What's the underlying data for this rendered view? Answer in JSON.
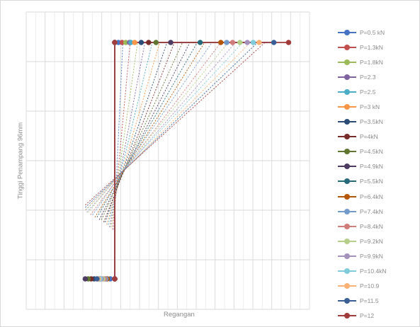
{
  "chart_data": {
    "type": "line",
    "title": "",
    "xlabel": "Regangan",
    "ylabel": "Tinggi Penampang 96mm",
    "xlim": [
      -2,
      10
    ],
    "ylim": [
      0,
      96
    ],
    "grid": true,
    "legend_position": "right",
    "series": [
      {
        "name": "P=0.5 kN",
        "color": "#4472c4",
        "x": [
          0.25,
          0.0,
          0.0,
          -0.3
        ],
        "y": [
          96,
          96,
          0,
          0
        ],
        "trend": [
          [
            -0.05,
            20
          ],
          [
            0.55,
            96
          ]
        ]
      },
      {
        "name": "P=1.3kN",
        "color": "#c0504d",
        "x": [
          0.5,
          0.0,
          0.0,
          -0.55
        ],
        "y": [
          96,
          96,
          0,
          0
        ],
        "trend": [
          [
            -0.15,
            20
          ],
          [
            1.05,
            96
          ]
        ]
      },
      {
        "name": "P=1.8kN",
        "color": "#9bbb59",
        "x": [
          0.75,
          0.0,
          0.0,
          -0.75
        ],
        "y": [
          96,
          96,
          0,
          0
        ],
        "trend": [
          [
            -0.25,
            21
          ],
          [
            1.55,
            96
          ]
        ]
      },
      {
        "name": "P=2.3",
        "color": "#8064a2",
        "x": [
          1.0,
          0.0,
          0.0,
          -0.95
        ],
        "y": [
          96,
          96,
          0,
          0
        ],
        "trend": [
          [
            -0.35,
            21
          ],
          [
            2.05,
            96
          ]
        ]
      },
      {
        "name": "P=2.5",
        "color": "#4bacc6",
        "x": [
          1.1,
          0.0,
          0.0,
          -1.05
        ],
        "y": [
          96,
          96,
          0,
          0
        ],
        "trend": [
          [
            -0.45,
            22
          ],
          [
            2.55,
            96
          ]
        ]
      },
      {
        "name": "P=3 kN",
        "color": "#f79646",
        "x": [
          1.35,
          0.0,
          0.0,
          -1.2
        ],
        "y": [
          96,
          96,
          0,
          0
        ],
        "trend": [
          [
            -0.55,
            22
          ],
          [
            3.05,
            96
          ]
        ]
      },
      {
        "name": "P=3.5kN",
        "color": "#2c4d75",
        "x": [
          1.8,
          0.0,
          0.0,
          -1.4
        ],
        "y": [
          96,
          96,
          0,
          0
        ],
        "trend": [
          [
            -0.65,
            23
          ],
          [
            3.55,
            96
          ]
        ]
      },
      {
        "name": "P=4kN",
        "color": "#772c2a",
        "x": [
          2.3,
          0.0,
          0.0,
          -1.6
        ],
        "y": [
          96,
          96,
          0,
          0
        ],
        "trend": [
          [
            -0.75,
            23
          ],
          [
            4.05,
            96
          ]
        ]
      },
      {
        "name": "P=4.5kN",
        "color": "#5f7530",
        "x": [
          2.8,
          0.0,
          0.0,
          -1.8
        ],
        "y": [
          96,
          96,
          0,
          0
        ],
        "trend": [
          [
            -0.9,
            24
          ],
          [
            4.6,
            96
          ]
        ]
      },
      {
        "name": "P=4.9kN",
        "color": "#4d3b62",
        "x": [
          3.8,
          0.0,
          0.0,
          -2.0
        ],
        "y": [
          96,
          96,
          0,
          0
        ],
        "trend": [
          [
            -1.05,
            24
          ],
          [
            5.1,
            96
          ]
        ]
      },
      {
        "name": "P=5.5kN",
        "color": "#276a7c",
        "x": [
          5.8,
          0.0,
          0.0,
          -1.0
        ],
        "y": [
          96,
          96,
          0,
          0
        ],
        "trend": [
          [
            -1.2,
            25
          ],
          [
            5.6,
            96
          ]
        ]
      },
      {
        "name": "P=6.4kN",
        "color": "#b65708",
        "x": [
          7.2,
          0.0,
          0.0,
          -0.5
        ],
        "y": [
          96,
          96,
          0,
          0
        ],
        "trend": [
          [
            -1.35,
            25
          ],
          [
            6.1,
            96
          ]
        ]
      },
      {
        "name": "P=7.4kN",
        "color": "#729aca",
        "x": [
          7.6,
          0.0,
          0.0,
          -0.6
        ],
        "y": [
          96,
          96,
          0,
          0
        ],
        "trend": [
          [
            -1.5,
            26
          ],
          [
            6.6,
            96
          ]
        ]
      },
      {
        "name": "P=8.4kN",
        "color": "#d07c7a",
        "x": [
          8.0,
          0.0,
          0.0,
          -0.7
        ],
        "y": [
          96,
          96,
          0,
          0
        ],
        "trend": [
          [
            -1.65,
            26
          ],
          [
            7.2,
            96
          ]
        ]
      },
      {
        "name": "P=9.2kN",
        "color": "#b5cf8a",
        "x": [
          8.5,
          0.0,
          0.0,
          -0.8
        ],
        "y": [
          96,
          96,
          0,
          0
        ],
        "trend": [
          [
            -1.8,
            27
          ],
          [
            7.7,
            96
          ]
        ]
      },
      {
        "name": "P=9.9kN",
        "color": "#a491be",
        "x": [
          9.0,
          0.0,
          0.0,
          -0.9
        ],
        "y": [
          96,
          96,
          0,
          0
        ],
        "trend": [
          [
            -1.9,
            27
          ],
          [
            8.2,
            96
          ]
        ]
      },
      {
        "name": "P=10.4kN",
        "color": "#7fcbdc",
        "x": [
          9.4,
          0.0,
          0.0,
          -1.0
        ],
        "y": [
          96,
          96,
          0,
          0
        ],
        "trend": [
          [
            -1.95,
            28
          ],
          [
            8.7,
            96
          ]
        ]
      },
      {
        "name": "P=10.9",
        "color": "#f9b175",
        "x": [
          9.8,
          0.0,
          0.0,
          -1.1
        ],
        "y": [
          96,
          96,
          0,
          0
        ],
        "trend": [
          [
            -2.0,
            28
          ],
          [
            9.2,
            96
          ]
        ]
      },
      {
        "name": "P=11.5",
        "color": "#3a5f96",
        "x": [
          10.8,
          0.0,
          0.0,
          -1.2
        ],
        "y": [
          96,
          96,
          0,
          0
        ],
        "trend": [
          [
            -2.0,
            29
          ],
          [
            9.7,
            96
          ]
        ]
      },
      {
        "name": "P=12",
        "color": "#a23b3b",
        "x": [
          11.8,
          0.0,
          0.0,
          0.0
        ],
        "y": [
          96,
          96,
          0,
          0
        ],
        "trend": [
          [
            -2.0,
            30
          ],
          [
            10.2,
            96
          ]
        ]
      }
    ]
  }
}
